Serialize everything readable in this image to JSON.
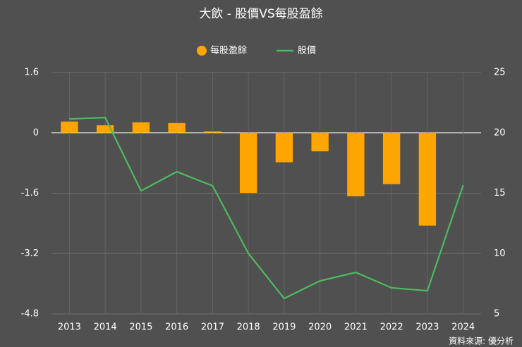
{
  "chart_data": {
    "type": "bar_line",
    "title": "大飲 - 股價VS每股盈餘",
    "categories": [
      "2013",
      "2014",
      "2015",
      "2016",
      "2017",
      "2018",
      "2019",
      "2020",
      "2021",
      "2022",
      "2023",
      "2024"
    ],
    "series": [
      {
        "name": "每股盈餘",
        "color": "#ffa500",
        "type": "bar",
        "axis": "y",
        "values": [
          0.3,
          0.2,
          0.28,
          0.26,
          0.04,
          -1.59,
          -0.78,
          -0.49,
          -1.68,
          -1.36,
          -2.46,
          null
        ]
      },
      {
        "name": "股價",
        "color": "#4cbb5f",
        "type": "line",
        "axis": "y2",
        "values": [
          21.15,
          21.27,
          15.2,
          16.78,
          15.61,
          10.01,
          6.28,
          7.74,
          8.44,
          7.16,
          6.92,
          15.67
        ]
      }
    ],
    "ylim": [
      -4.8,
      1.6
    ],
    "yticks": [
      -4.8,
      -3.2,
      -1.6,
      0,
      1.6
    ],
    "y2lim": [
      5,
      25
    ],
    "y2ticks": [
      5,
      10,
      15,
      20,
      25
    ],
    "grid": true,
    "legend": "top",
    "source": "資料來源: 優分析"
  }
}
